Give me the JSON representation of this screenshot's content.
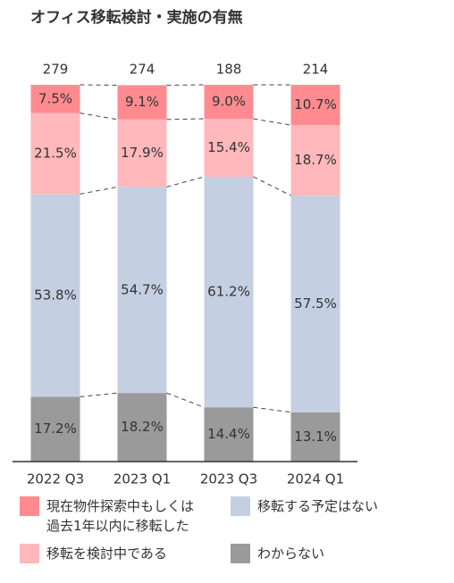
{
  "chart_data": {
    "type": "stacked_bar_100",
    "title": "オフィス移転検討・実施の有無",
    "categories": [
      "2022 Q3",
      "2023 Q1",
      "2023 Q3",
      "2024 Q1"
    ],
    "totals": [
      279,
      274,
      188,
      214
    ],
    "ylim": [
      0,
      100
    ],
    "series": [
      {
        "name": "わからない",
        "color": "#9a9a9a",
        "values": [
          17.2,
          18.2,
          14.4,
          13.1
        ],
        "value_labels": [
          "17.2%",
          "18.2%",
          "14.4%",
          "13.1%"
        ]
      },
      {
        "name": "移転する予定はない",
        "color": "#c5cfe2",
        "values": [
          53.8,
          54.7,
          61.2,
          57.5
        ],
        "value_labels": [
          "53.8%",
          "54.7%",
          "61.2%",
          "57.5%"
        ]
      },
      {
        "name": "移転を検討中である",
        "color": "#ffb8bb",
        "values": [
          21.5,
          17.9,
          15.4,
          18.7
        ],
        "value_labels": [
          "21.5%",
          "17.9%",
          "15.4%",
          "18.7%"
        ]
      },
      {
        "name": "現在物件探索中もしくは\n過去1年以内に移転した",
        "color": "#ff8b90",
        "values": [
          7.5,
          9.1,
          9.0,
          10.7
        ],
        "value_labels": [
          "7.5%",
          "9.1%",
          "9.0%",
          "10.7%"
        ]
      }
    ]
  }
}
